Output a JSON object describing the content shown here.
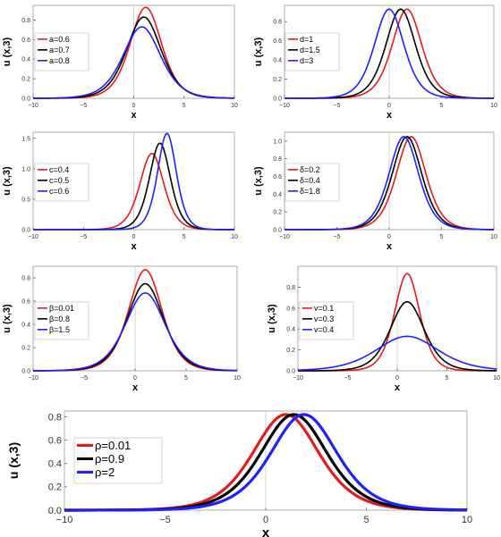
{
  "chart_data": [
    {
      "id": "a",
      "type": "line",
      "xlabel": "x",
      "ylabel": "u (x,3)",
      "xlim": [
        -10,
        10
      ],
      "ylim": [
        0,
        0.95
      ],
      "xticks": [
        -10,
        -5,
        0,
        5,
        10
      ],
      "yticks": [
        0.0,
        0.2,
        0.4,
        0.6,
        0.8
      ],
      "legend_position": "left",
      "series": [
        {
          "name": "a=0.6",
          "color": "#e41a1c",
          "peak": 0.93,
          "center": 1.2,
          "width": 2.1
        },
        {
          "name": "a=0.7",
          "color": "#000000",
          "peak": 0.83,
          "center": 1.0,
          "width": 2.3
        },
        {
          "name": "a=0.8",
          "color": "#1f1fff",
          "peak": 0.73,
          "center": 0.8,
          "width": 2.5
        }
      ]
    },
    {
      "id": "d",
      "type": "line",
      "xlabel": "x",
      "ylabel": "u (x,3)",
      "xlim": [
        -10,
        10
      ],
      "ylim": [
        0,
        0.97
      ],
      "xticks": [
        -10,
        -5,
        0,
        5,
        10
      ],
      "yticks": [
        0.0,
        0.2,
        0.4,
        0.6,
        0.8
      ],
      "legend_position": "left",
      "series": [
        {
          "name": "d=1",
          "color": "#e41a1c",
          "peak": 0.93,
          "center": 1.7,
          "width": 1.9
        },
        {
          "name": "d=1.5",
          "color": "#000000",
          "peak": 0.93,
          "center": 1.1,
          "width": 1.9
        },
        {
          "name": "d=3",
          "color": "#1f1fff",
          "peak": 0.93,
          "center": 0.0,
          "width": 1.9
        }
      ]
    },
    {
      "id": "c",
      "type": "line",
      "xlabel": "x",
      "ylabel": "u (x,3)",
      "xlim": [
        -10,
        10
      ],
      "ylim": [
        0,
        1.6
      ],
      "xticks": [
        -10,
        -5,
        0,
        5,
        10
      ],
      "yticks": [
        0.0,
        0.5,
        1.0,
        1.5
      ],
      "legend_position": "left",
      "series": [
        {
          "name": "c=0.4",
          "color": "#e41a1c",
          "peak": 1.25,
          "center": 1.8,
          "width": 1.6
        },
        {
          "name": "c=0.5",
          "color": "#000000",
          "peak": 1.42,
          "center": 2.6,
          "width": 1.4
        },
        {
          "name": "c=0.6",
          "color": "#1f1fff",
          "peak": 1.58,
          "center": 3.3,
          "width": 1.25
        }
      ]
    },
    {
      "id": "delta",
      "type": "line",
      "xlabel": "x",
      "ylabel": "u (x,3)",
      "xlim": [
        -10,
        10
      ],
      "ylim": [
        0,
        1.1
      ],
      "xticks": [
        -10,
        -5,
        0,
        5,
        10
      ],
      "yticks": [
        0.0,
        0.2,
        0.4,
        0.6,
        0.8,
        1.0
      ],
      "legend_position": "left",
      "series": [
        {
          "name": "δ=0.2",
          "color": "#e41a1c",
          "peak": 1.05,
          "center": 2.1,
          "width": 1.9
        },
        {
          "name": "δ=0.4",
          "color": "#000000",
          "peak": 1.05,
          "center": 1.7,
          "width": 1.9
        },
        {
          "name": "δ=1.8",
          "color": "#1f1fff",
          "peak": 1.05,
          "center": 1.4,
          "width": 1.9
        }
      ]
    },
    {
      "id": "beta",
      "type": "line",
      "xlabel": "x",
      "ylabel": "u (x,3)",
      "xlim": [
        -10,
        10
      ],
      "ylim": [
        0,
        0.9
      ],
      "xticks": [
        -10,
        -5,
        0,
        5,
        10
      ],
      "yticks": [
        0.0,
        0.2,
        0.4,
        0.6,
        0.8
      ],
      "legend_position": "left",
      "series": [
        {
          "name": "β=0.01",
          "color": "#e41a1c",
          "peak": 0.87,
          "center": 1.0,
          "width": 2.2
        },
        {
          "name": "β=0.8",
          "color": "#000000",
          "peak": 0.75,
          "center": 1.0,
          "width": 2.4
        },
        {
          "name": "β=1.5",
          "color": "#1f1fff",
          "peak": 0.67,
          "center": 1.0,
          "width": 2.6
        }
      ]
    },
    {
      "id": "v",
      "type": "line",
      "xlabel": "x",
      "ylabel": "u (x,3)",
      "xlim": [
        -10,
        10
      ],
      "ylim": [
        0,
        1.0
      ],
      "xticks": [
        -10,
        -5,
        0,
        5,
        10
      ],
      "yticks": [
        0.0,
        0.2,
        0.4,
        0.6,
        0.8
      ],
      "legend_position": "left",
      "series": [
        {
          "name": "v=0.1",
          "color": "#e41a1c",
          "peak": 0.93,
          "center": 1.0,
          "width": 1.7
        },
        {
          "name": "v=0.3",
          "color": "#000000",
          "peak": 0.66,
          "center": 1.0,
          "width": 2.3
        },
        {
          "name": "v=0.4",
          "color": "#1f1fff",
          "peak": 0.33,
          "center": 1.0,
          "width": 4.2
        }
      ]
    },
    {
      "id": "rho",
      "type": "line",
      "xlabel": "x",
      "ylabel": "u (x,3)",
      "xlim": [
        -10,
        10
      ],
      "ylim": [
        0,
        0.85
      ],
      "xticks": [
        -10,
        -5,
        0,
        5,
        10
      ],
      "yticks": [
        0.0,
        0.2,
        0.4,
        0.6,
        0.8
      ],
      "legend_position": "left",
      "series": [
        {
          "name": "ρ=0.01",
          "color": "#e41a1c",
          "peak": 0.82,
          "center": 1.0,
          "width": 2.2
        },
        {
          "name": "ρ=0.9",
          "color": "#000000",
          "peak": 0.82,
          "center": 1.4,
          "width": 2.2
        },
        {
          "name": "ρ=2",
          "color": "#1f1fff",
          "peak": 0.82,
          "center": 1.9,
          "width": 2.2
        }
      ]
    }
  ]
}
